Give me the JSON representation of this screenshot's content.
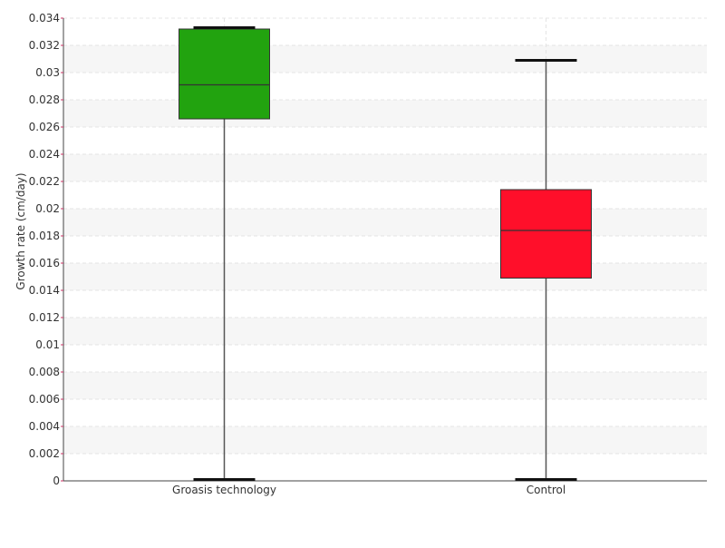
{
  "chart_data": {
    "type": "box",
    "ylabel": "Growth rate (cm/day)",
    "ylim": [
      0,
      0.034
    ],
    "yticks": [
      0,
      0.002,
      0.004,
      0.006,
      0.008,
      0.01,
      0.012,
      0.014,
      0.016,
      0.018,
      0.02,
      0.022,
      0.024,
      0.026,
      0.028,
      0.03,
      0.032,
      0.034
    ],
    "ytick_labels": [
      "0",
      "0.002",
      "0.004",
      "0.006",
      "0.008",
      "0.01",
      "0.012",
      "0.014",
      "0.016",
      "0.018",
      "0.02",
      "0.022",
      "0.024",
      "0.026",
      "0.028",
      "0.03",
      "0.032",
      "0.034"
    ],
    "categories": [
      "Groasis technology",
      "Control"
    ],
    "boxes": [
      {
        "category": "Groasis technology",
        "min": 0.0001,
        "q1": 0.0266,
        "median": 0.0291,
        "q3": 0.0332,
        "max": 0.0333,
        "color": "#22a30f"
      },
      {
        "category": "Control",
        "min": 0.0001,
        "q1": 0.0149,
        "median": 0.0184,
        "q3": 0.0214,
        "max": 0.0309,
        "color": "#ff0f2a"
      }
    ],
    "grid": true,
    "banded_background": true
  }
}
